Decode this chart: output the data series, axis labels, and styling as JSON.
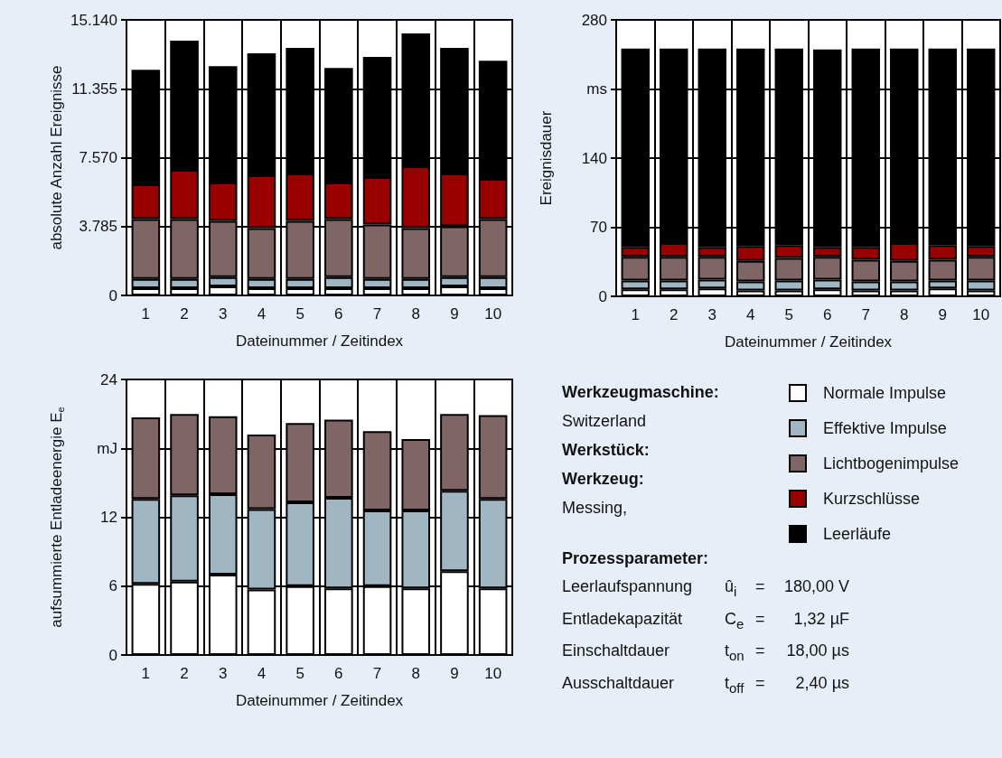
{
  "chart_data": [
    {
      "type": "bar",
      "stacked": true,
      "xlabel": "Dateinummer / Zeitindex",
      "ylabel": "absolute Anzahl Ereignisse",
      "categories": [
        "1",
        "2",
        "3",
        "4",
        "5",
        "6",
        "7",
        "8",
        "9",
        "10"
      ],
      "ylim": [
        0,
        15140
      ],
      "yticks": [
        0,
        {
          "value": 3785,
          "label": "3.785"
        },
        {
          "value": 7570,
          "label": "7.570"
        },
        {
          "value": 11355,
          "label": "11.355"
        },
        {
          "value": 15140,
          "label": "15.140"
        }
      ],
      "grid": true,
      "legend": "right",
      "series": [
        {
          "name": "Normale Impulse",
          "color": "#ffffff",
          "values": [
            400,
            400,
            500,
            400,
            400,
            400,
            400,
            400,
            500,
            400
          ]
        },
        {
          "name": "Effektive Impulse",
          "color": "#a1b6c3",
          "values": [
            500,
            500,
            500,
            500,
            500,
            600,
            500,
            500,
            500,
            600
          ]
        },
        {
          "name": "Lichtbogenimpulse",
          "color": "#7f6565",
          "values": [
            3300,
            3300,
            3100,
            2800,
            3200,
            3200,
            3000,
            2800,
            2800,
            3200
          ]
        },
        {
          "name": "Kurzschlüsse",
          "color": "#990000",
          "values": [
            1900,
            2700,
            2100,
            2900,
            2600,
            2000,
            2600,
            3400,
            2900,
            2200
          ]
        },
        {
          "name": "Leerläufe",
          "color": "#000000",
          "values": [
            6300,
            7100,
            6400,
            6700,
            6900,
            6300,
            6600,
            7300,
            6900,
            6500
          ]
        }
      ]
    },
    {
      "type": "bar",
      "stacked": true,
      "xlabel": "Dateinummer / Zeitindex",
      "ylabel": "Ereignisdauer",
      "categories": [
        "1",
        "2",
        "3",
        "4",
        "5",
        "6",
        "7",
        "8",
        "9",
        "10"
      ],
      "ylim": [
        0,
        280
      ],
      "yticks": [
        0,
        70,
        140,
        {
          "value": 210,
          "label": "ms"
        },
        280
      ],
      "grid": true,
      "series": [
        {
          "color": "#ffffff",
          "values": [
            7,
            7,
            8,
            6,
            6,
            7,
            6,
            6,
            8,
            6
          ]
        },
        {
          "color": "#a1b6c3",
          "values": [
            9,
            9,
            9,
            9,
            10,
            10,
            9,
            9,
            8,
            10
          ]
        },
        {
          "color": "#7f6565",
          "values": [
            24,
            24,
            23,
            21,
            23,
            23,
            22,
            21,
            21,
            24
          ]
        },
        {
          "color": "#990000",
          "values": [
            10,
            14,
            10,
            15,
            13,
            10,
            13,
            18,
            15,
            11
          ]
        },
        {
          "color": "#000000",
          "values": [
            201,
            197,
            201,
            200,
            199,
            200,
            201,
            197,
            199,
            200
          ]
        }
      ]
    },
    {
      "type": "bar",
      "stacked": true,
      "xlabel": "Dateinummer / Zeitindex",
      "ylabel": "aufsummierte Entladeenergie E$_{e}$",
      "categories": [
        "1",
        "2",
        "3",
        "4",
        "5",
        "6",
        "7",
        "8",
        "9",
        "10"
      ],
      "ylim": [
        0,
        24
      ],
      "yticks": [
        0,
        6,
        12,
        {
          "value": 18,
          "label": "mJ"
        },
        24
      ],
      "grid": true,
      "series": [
        {
          "color": "#ffffff",
          "values": [
            6.2,
            6.4,
            7.0,
            5.7,
            6.0,
            5.8,
            6.0,
            5.8,
            7.3,
            5.8
          ]
        },
        {
          "color": "#a1b6c3",
          "values": [
            7.4,
            7.5,
            7.0,
            7.0,
            7.3,
            7.9,
            6.6,
            6.8,
            7.0,
            7.8
          ]
        },
        {
          "color": "#7f6565",
          "values": [
            7.1,
            7.1,
            6.8,
            6.5,
            6.9,
            6.8,
            6.9,
            6.2,
            6.7,
            7.3
          ]
        }
      ]
    },
    {
      "type": "other",
      "title": "Werkzeugmaschine:",
      "annotations": [
        "Switzerland"
      ]
    },
    {
      "type": "other",
      "title": "Werkstück:"
    },
    {
      "type": "other",
      "title": "Werkzeug:",
      "annotations": [
        "Messing,"
      ]
    },
    {
      "type": "other",
      "title": "Prozessparameter:",
      "annotations": [
        "Leerlaufspannung",
        "û$_{i}$",
        "=",
        "180,00 V",
        "Entladekapazität",
        "C$_{e}$",
        "=",
        "1,32 µF",
        "Einschaltdauer",
        "t$_{on}$",
        "=",
        "18,00 µs",
        "Ausschaltdauer",
        "t$_{off}$",
        "=",
        "2,40 µs"
      ]
    }
  ]
}
